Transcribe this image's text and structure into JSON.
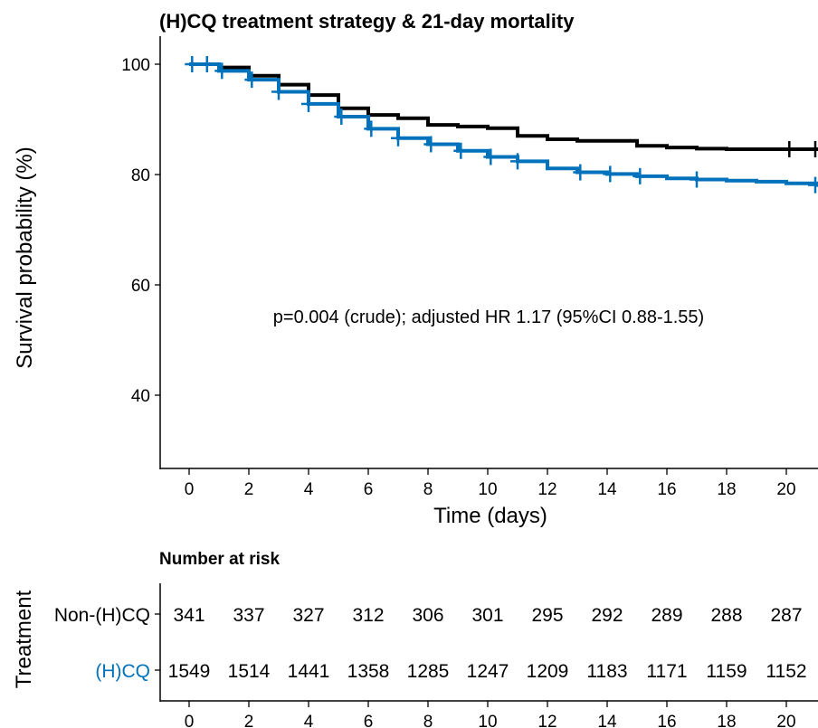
{
  "chart_data": {
    "type": "line",
    "title": "(H)CQ treatment strategy & 21-day mortality",
    "xlabel": "Time (days)",
    "ylabel": "Survival probability (%)",
    "xlim": [
      -1,
      21
    ],
    "ylim": [
      27,
      103
    ],
    "xticks": [
      0,
      2,
      4,
      6,
      8,
      10,
      12,
      14,
      16,
      18,
      20
    ],
    "yticks": [
      40,
      60,
      80,
      100
    ],
    "annotation": "p=0.004 (crude); adjusted HR 1.17 (95%CI 0.88-1.55)",
    "series": [
      {
        "name": "Non-(H)CQ",
        "color": "#000000",
        "x": [
          0,
          1,
          2,
          3,
          4,
          5,
          6,
          7,
          8,
          9,
          10,
          11,
          12,
          13,
          14,
          15,
          16,
          17,
          18,
          19,
          20,
          21
        ],
        "y": [
          100,
          99.4,
          97.9,
          96.3,
          94.4,
          92.0,
          90.8,
          90.2,
          89.0,
          88.7,
          88.4,
          87.0,
          86.4,
          86.1,
          86.1,
          85.2,
          84.9,
          84.7,
          84.6,
          84.6,
          84.6,
          84.6
        ],
        "censor_x": [
          20.1,
          21
        ]
      },
      {
        "name": "(H)CQ",
        "color": "#0072BB",
        "x": [
          0,
          1,
          2,
          3,
          4,
          5,
          6,
          7,
          8,
          9,
          10,
          11,
          12,
          13,
          14,
          15,
          16,
          17,
          18,
          19,
          20,
          21
        ],
        "y": [
          100,
          98.8,
          97.2,
          95.0,
          92.8,
          90.5,
          88.3,
          86.6,
          85.5,
          84.3,
          83.2,
          82.4,
          81.1,
          80.4,
          80.1,
          79.7,
          79.3,
          79.1,
          78.9,
          78.7,
          78.4,
          78.1
        ],
        "censor_x": [
          0.1,
          0.6,
          1.1,
          2.1,
          3.0,
          4.0,
          5.1,
          6.1,
          7.0,
          8.1,
          9.1,
          10.1,
          11.0,
          13.1,
          14.1,
          15.1,
          17.0,
          21
        ]
      }
    ],
    "risk_table": {
      "title": "Number at risk",
      "ylabel": "Treatment",
      "times": [
        0,
        2,
        4,
        6,
        8,
        10,
        12,
        14,
        16,
        18,
        20
      ],
      "rows": [
        {
          "name": "Non-(H)CQ",
          "color": "#000000",
          "values": [
            "341",
            "337",
            "327",
            "312",
            "306",
            "301",
            "295",
            "292",
            "289",
            "288",
            "287"
          ]
        },
        {
          "name": "(H)CQ",
          "color": "#0072BB",
          "values": [
            "1549",
            "1514",
            "1441",
            "1358",
            "1285",
            "1247",
            "1209",
            "1183",
            "1171",
            "1159",
            "1152"
          ]
        }
      ]
    }
  }
}
